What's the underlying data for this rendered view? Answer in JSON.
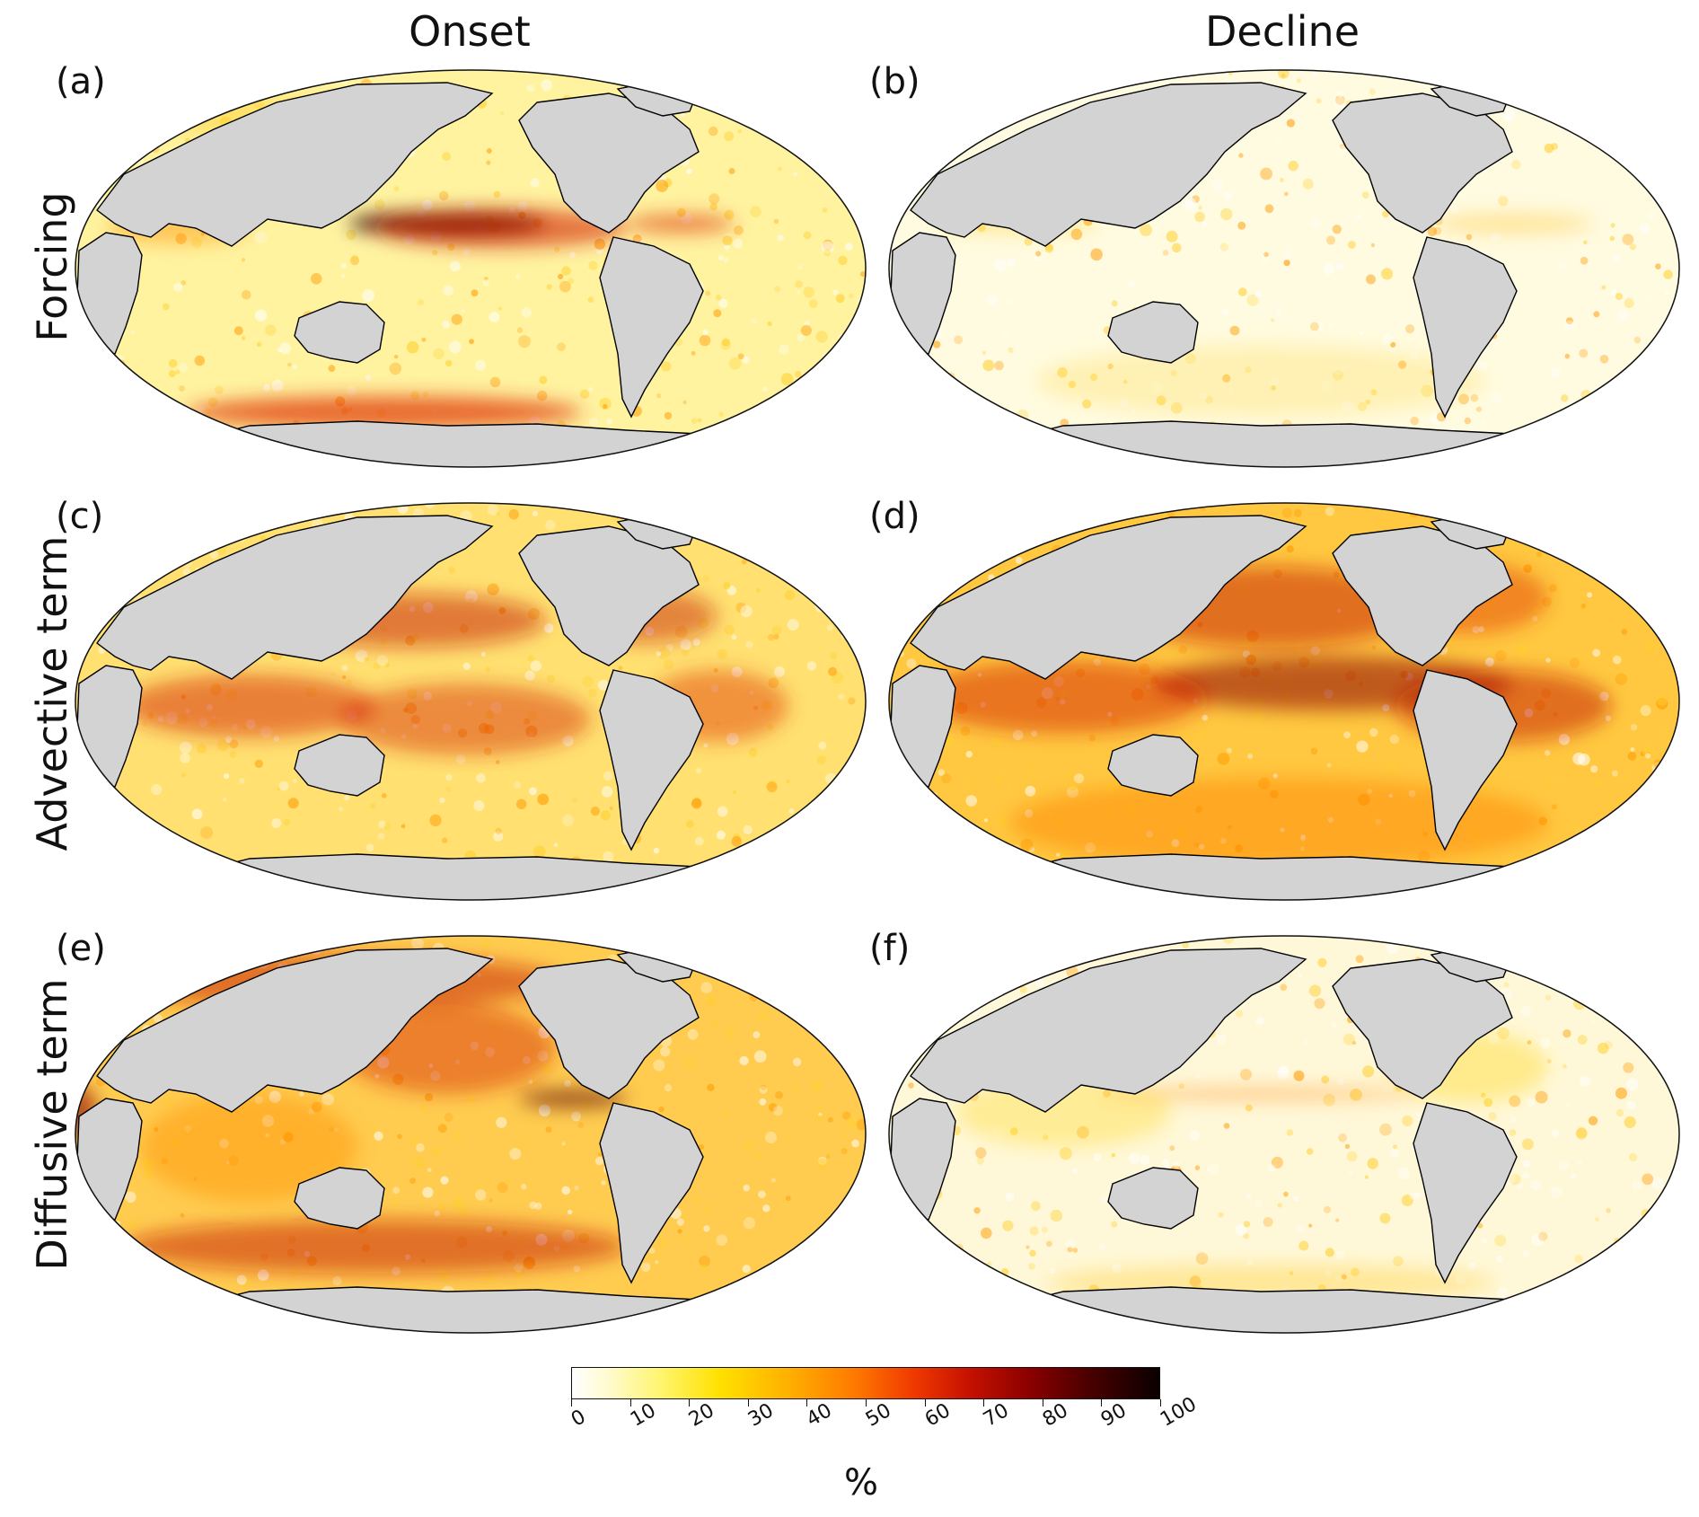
{
  "columns": [
    "Onset",
    "Decline"
  ],
  "rows": [
    "Forcing",
    "Advective term",
    "Diffusive term"
  ],
  "panels": [
    {
      "label": "(a)",
      "row": "Forcing",
      "column": "Onset"
    },
    {
      "label": "(b)",
      "row": "Forcing",
      "column": "Decline"
    },
    {
      "label": "(c)",
      "row": "Advective term",
      "column": "Onset"
    },
    {
      "label": "(d)",
      "row": "Advective term",
      "column": "Decline"
    },
    {
      "label": "(e)",
      "row": "Diffusive term",
      "column": "Onset"
    },
    {
      "label": "(f)",
      "row": "Diffusive term",
      "column": "Decline"
    }
  ],
  "colorbar": {
    "ticks": [
      "0",
      "10",
      "20",
      "30",
      "40",
      "50",
      "60",
      "70",
      "80",
      "90",
      "100"
    ],
    "range": [
      0,
      100
    ],
    "unit": "%",
    "colormap": "white-yellow-orange-red-black",
    "colors": [
      "#ffffff",
      "#fff570",
      "#ffb400",
      "#f03a00",
      "#8a0000",
      "#0a0000"
    ]
  },
  "map_style": {
    "projection": "Robinson (Pacific-centered)",
    "land_color": "#d3d3d3",
    "coastline_color": "#000000"
  }
}
